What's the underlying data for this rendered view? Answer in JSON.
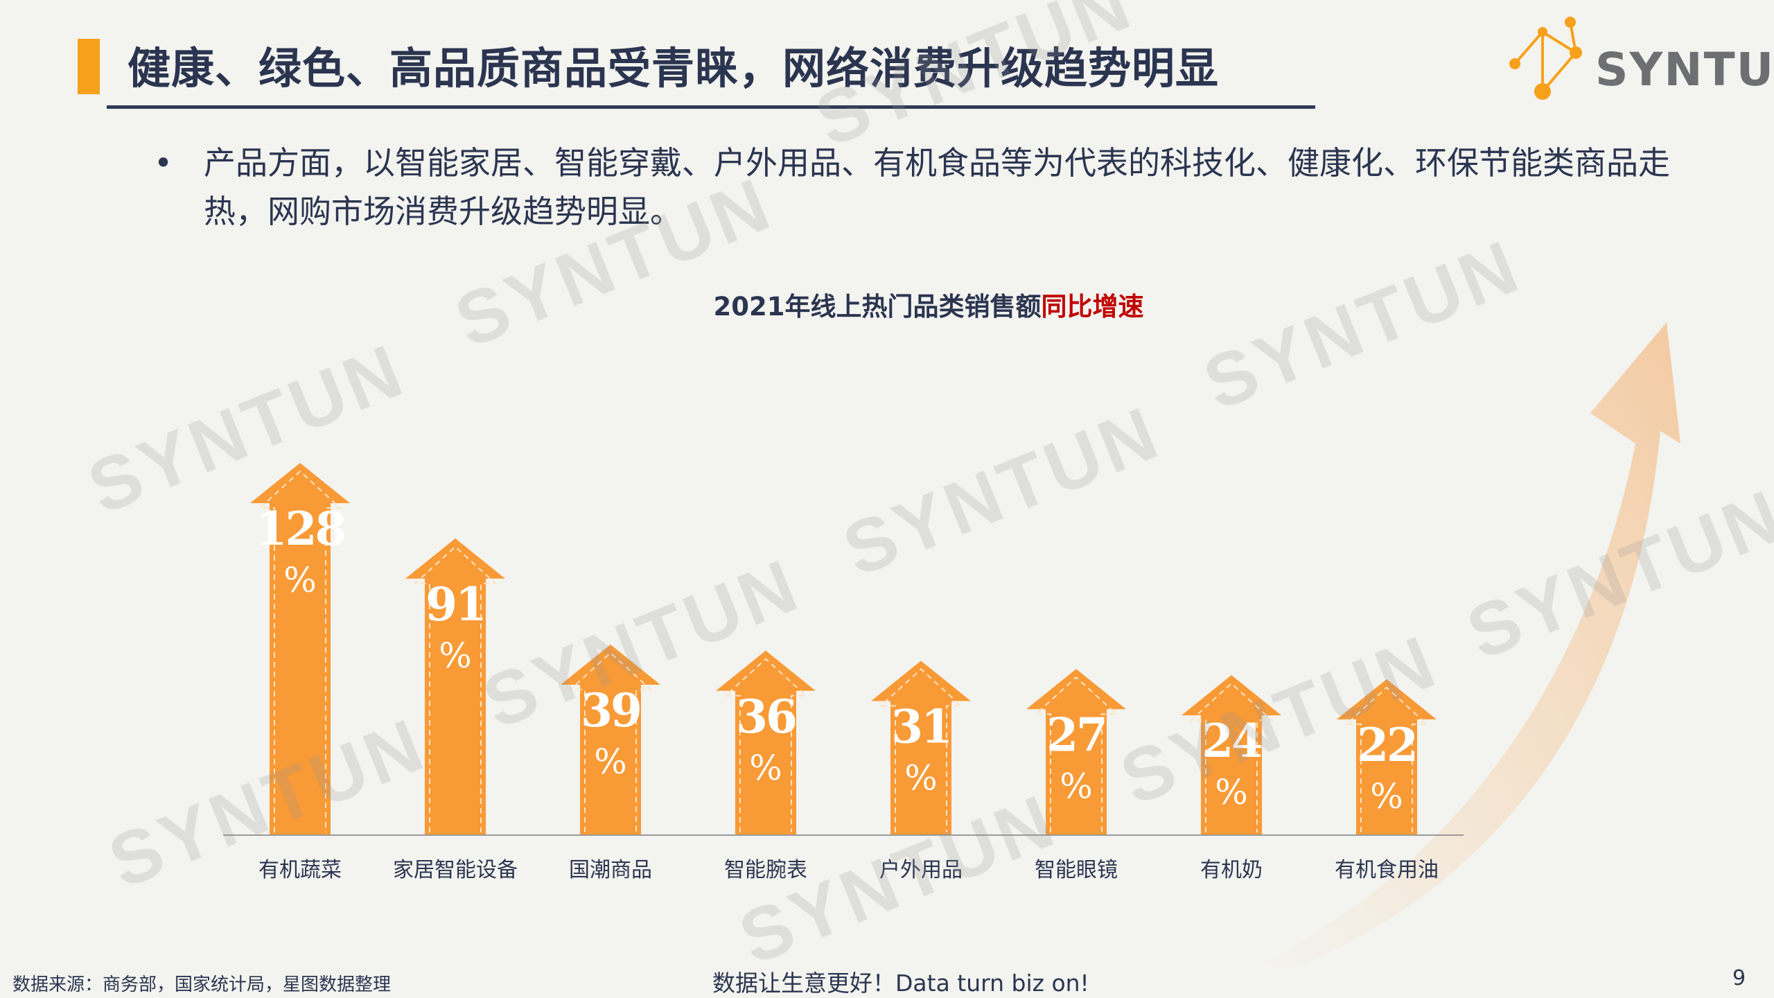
{
  "title": "健康、绿色、高品质商品受青睐，网络消费升级趋势明显",
  "logo": {
    "text": "SYNTUN"
  },
  "bullet": {
    "dot": "•",
    "text": "产品方面，以智能家居、智能穿戴、户外用品、有机食品等为代表的科技化、健康化、环保节能类商品走热，网购市场消费升级趋势明显。"
  },
  "watermark": "SYNTUN",
  "chart_data": {
    "type": "bar",
    "title_main": "2021年线上热门品类销售额",
    "title_highlight": "同比增速",
    "categories": [
      "有机蔬菜",
      "家居智能设备",
      "国潮商品",
      "智能腕表",
      "户外用品",
      "智能眼镜",
      "有机奶",
      "有机食用油"
    ],
    "values": [
      128,
      91,
      39,
      36,
      31,
      27,
      24,
      22
    ],
    "unit": "%",
    "bar_color": "#f89a36",
    "highlight_color": "#c00000"
  },
  "footer": {
    "source": "数据来源：商务部，国家统计局，星图数据整理",
    "slogan": "数据让生意更好！Data turn biz on!",
    "page": "9"
  }
}
